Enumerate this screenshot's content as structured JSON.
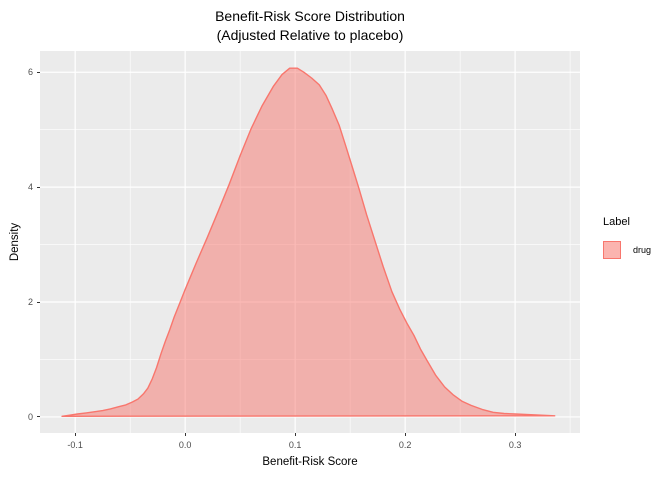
{
  "title": {
    "line1": "Benefit-Risk Score Distribution",
    "line2": "(Adjusted Relative to placebo)"
  },
  "axes": {
    "x_label": "Benefit-Risk Score",
    "y_label": "Density"
  },
  "legend": {
    "title": "Label",
    "items": [
      {
        "label": "drug",
        "fill": "#F8766D",
        "fill_alpha": 0.55
      }
    ]
  },
  "colors": {
    "panel_background": "#EBEBEB",
    "grid": "#FFFFFF",
    "curve_stroke": "#F8766D",
    "curve_fill": "rgba(248,118,109,0.5)",
    "tick_label": "#4D4D4D",
    "tick_mark": "#333333",
    "text": "#000000"
  },
  "chart_data": {
    "type": "area",
    "subtype": "density",
    "title": "Benefit-Risk Score Distribution",
    "subtitle": "(Adjusted Relative to placebo)",
    "xlabel": "Benefit-Risk Score",
    "ylabel": "Density",
    "legend_position": "right",
    "grid": true,
    "xlim": [
      -0.132,
      0.359
    ],
    "ylim": [
      -0.28,
      6.37
    ],
    "x_ticks": [
      -0.1,
      0.0,
      0.1,
      0.2,
      0.3
    ],
    "x_tick_labels": [
      "-0.1",
      "0.0",
      "0.1",
      "0.2",
      "0.3"
    ],
    "x_minor_ticks": [
      -0.05,
      0.05,
      0.15,
      0.25,
      0.35
    ],
    "y_ticks": [
      0,
      2,
      4,
      6
    ],
    "y_tick_labels": [
      "0",
      "2",
      "4",
      "6"
    ],
    "y_minor_ticks": [
      1,
      3,
      5
    ],
    "series": [
      {
        "name": "drug",
        "points": [
          [
            -0.112,
            0.01
          ],
          [
            -0.105,
            0.03
          ],
          [
            -0.098,
            0.05
          ],
          [
            -0.09,
            0.07
          ],
          [
            -0.082,
            0.09
          ],
          [
            -0.075,
            0.11
          ],
          [
            -0.068,
            0.14
          ],
          [
            -0.06,
            0.18
          ],
          [
            -0.054,
            0.21
          ],
          [
            -0.048,
            0.26
          ],
          [
            -0.043,
            0.31
          ],
          [
            -0.038,
            0.4
          ],
          [
            -0.034,
            0.5
          ],
          [
            -0.03,
            0.66
          ],
          [
            -0.026,
            0.86
          ],
          [
            -0.022,
            1.1
          ],
          [
            -0.018,
            1.32
          ],
          [
            -0.014,
            1.52
          ],
          [
            -0.01,
            1.74
          ],
          [
            -0.005,
            1.98
          ],
          [
            0.0,
            2.22
          ],
          [
            0.005,
            2.45
          ],
          [
            0.01,
            2.68
          ],
          [
            0.02,
            3.12
          ],
          [
            0.03,
            3.58
          ],
          [
            0.04,
            4.05
          ],
          [
            0.05,
            4.55
          ],
          [
            0.06,
            5.02
          ],
          [
            0.07,
            5.42
          ],
          [
            0.08,
            5.75
          ],
          [
            0.088,
            5.96
          ],
          [
            0.095,
            6.07
          ],
          [
            0.102,
            6.07
          ],
          [
            0.108,
            6.0
          ],
          [
            0.115,
            5.9
          ],
          [
            0.122,
            5.78
          ],
          [
            0.128,
            5.6
          ],
          [
            0.134,
            5.35
          ],
          [
            0.14,
            5.08
          ],
          [
            0.146,
            4.72
          ],
          [
            0.152,
            4.35
          ],
          [
            0.158,
            3.98
          ],
          [
            0.165,
            3.52
          ],
          [
            0.172,
            3.1
          ],
          [
            0.18,
            2.62
          ],
          [
            0.188,
            2.18
          ],
          [
            0.195,
            1.88
          ],
          [
            0.202,
            1.62
          ],
          [
            0.208,
            1.42
          ],
          [
            0.214,
            1.18
          ],
          [
            0.22,
            0.98
          ],
          [
            0.228,
            0.72
          ],
          [
            0.236,
            0.52
          ],
          [
            0.244,
            0.38
          ],
          [
            0.252,
            0.27
          ],
          [
            0.26,
            0.2
          ],
          [
            0.27,
            0.13
          ],
          [
            0.28,
            0.08
          ],
          [
            0.29,
            0.06
          ],
          [
            0.3,
            0.05
          ],
          [
            0.312,
            0.04
          ],
          [
            0.324,
            0.03
          ],
          [
            0.336,
            0.02
          ]
        ]
      }
    ]
  }
}
